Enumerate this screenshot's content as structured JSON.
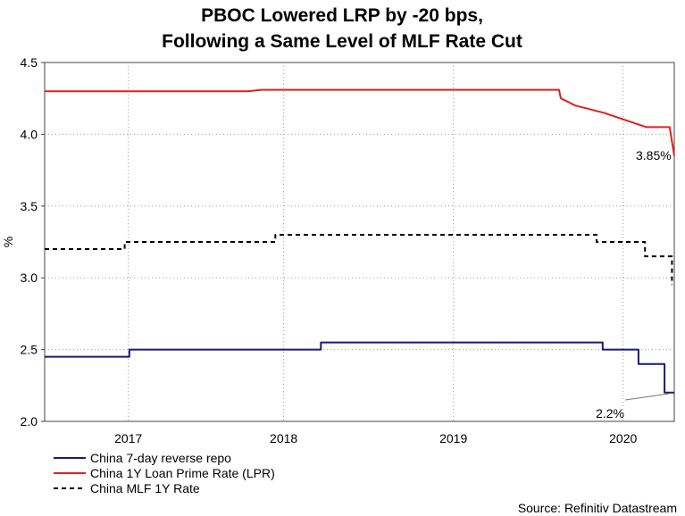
{
  "chart_data": {
    "type": "line",
    "title": "PBOC Lowered LRP by -20 bps,",
    "subtitle": "Following a Same Level of MLF Rate Cut",
    "ylabel": "%",
    "xlabel": "",
    "ylim": [
      2.0,
      4.5
    ],
    "xlim": [
      "2016-08-05",
      "2020-04-20"
    ],
    "yticks": [
      "2.0",
      "2.5",
      "3.0",
      "3.5",
      "4.0",
      "4.5"
    ],
    "xticks": [
      {
        "label": "2017",
        "date": "2017-02-01"
      },
      {
        "label": "2018",
        "date": "2018-01-01"
      },
      {
        "label": "2019",
        "date": "2019-01-01"
      },
      {
        "label": "2020",
        "date": "2020-01-01"
      }
    ],
    "grid": true,
    "legend_position": "bottom-left",
    "series": [
      {
        "name": "China 7-day reverse repo",
        "color": "#1a1a7a",
        "dash": "solid",
        "points": [
          [
            "2016-08-05",
            2.45
          ],
          [
            "2017-02-03",
            2.45
          ],
          [
            "2017-02-03",
            2.5
          ],
          [
            "2018-03-22",
            2.5
          ],
          [
            "2018-03-22",
            2.55
          ],
          [
            "2019-11-18",
            2.55
          ],
          [
            "2019-11-18",
            2.5
          ],
          [
            "2020-02-03",
            2.5
          ],
          [
            "2020-02-03",
            2.4
          ],
          [
            "2020-03-30",
            2.4
          ],
          [
            "2020-03-30",
            2.2
          ],
          [
            "2020-04-20",
            2.2
          ]
        ]
      },
      {
        "name": "China 1Y Loan Prime Rate (LPR)",
        "color": "#e02020",
        "dash": "solid",
        "points": [
          [
            "2016-08-05",
            4.3
          ],
          [
            "2017-10-15",
            4.3
          ],
          [
            "2017-11-15",
            4.31
          ],
          [
            "2019-08-16",
            4.31
          ],
          [
            "2019-08-20",
            4.25
          ],
          [
            "2019-09-20",
            4.2
          ],
          [
            "2019-11-20",
            4.15
          ],
          [
            "2020-02-20",
            4.05
          ],
          [
            "2020-04-10",
            4.05
          ],
          [
            "2020-04-20",
            3.85
          ]
        ]
      },
      {
        "name": "China MLF 1Y Rate",
        "color": "#000000",
        "dash": "dashed",
        "points": [
          [
            "2016-08-05",
            3.2
          ],
          [
            "2017-01-24",
            3.2
          ],
          [
            "2017-01-24",
            3.25
          ],
          [
            "2017-12-14",
            3.25
          ],
          [
            "2017-12-14",
            3.3
          ],
          [
            "2019-11-05",
            3.3
          ],
          [
            "2019-11-05",
            3.25
          ],
          [
            "2020-02-17",
            3.25
          ],
          [
            "2020-02-17",
            3.15
          ],
          [
            "2020-04-15",
            3.15
          ],
          [
            "2020-04-15",
            2.95
          ]
        ]
      }
    ],
    "annotations": [
      {
        "text": "3.85%",
        "date": "2020-04-20",
        "value": 3.85
      },
      {
        "text": "2.2%",
        "date": "2020-04-20",
        "value": 2.2
      }
    ],
    "source": "Source: Refinitiv Datastream"
  }
}
